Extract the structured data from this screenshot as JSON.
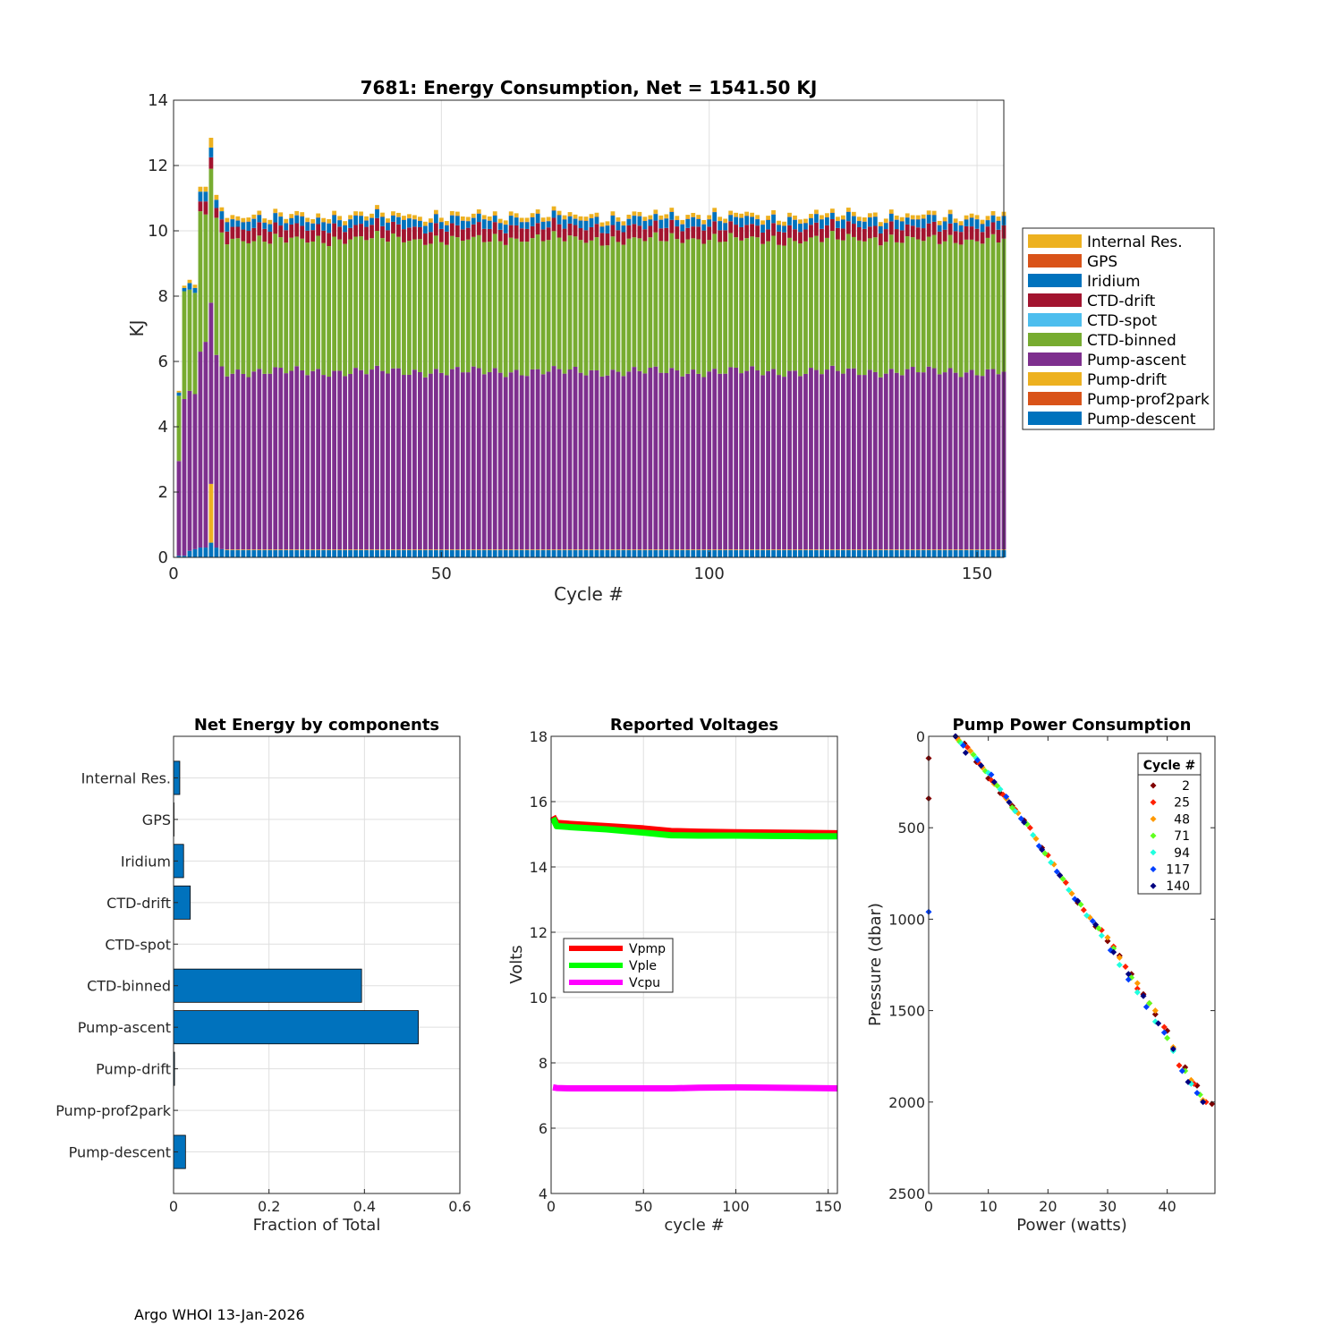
{
  "footer": "Argo WHOI 13-Jan-2026",
  "colors": {
    "internal_res": "#edb120",
    "gps": "#d95319",
    "iridium": "#0072bd",
    "ctd_drift": "#a2142f",
    "ctd_spot": "#4dbeee",
    "ctd_binned": "#77ac30",
    "pump_ascent": "#7e2f8e",
    "pump_drift": "#edb120",
    "pump_prof2park": "#d95319",
    "pump_descent": "#0072bd",
    "hbar": "#0072bd",
    "vpmp": "#ff0000",
    "vple": "#00ff00",
    "vcpu": "#ff00ff"
  },
  "chart_data": [
    {
      "type": "bar",
      "stacked": true,
      "title": "7681: Energy Consumption,  Net = 1541.50 KJ",
      "xlabel": "Cycle #",
      "ylabel": "KJ",
      "xlim": [
        0,
        155
      ],
      "ylim": [
        0,
        14
      ],
      "xticks": [
        0,
        50,
        100,
        150
      ],
      "yticks": [
        0,
        2,
        4,
        6,
        8,
        10,
        12,
        14
      ],
      "grid": true,
      "legend_position": "right",
      "legend": [
        "Internal Res.",
        "GPS",
        "Iridium",
        "CTD-drift",
        "CTD-spot",
        "CTD-binned",
        "Pump-ascent",
        "Pump-drift",
        "Pump-prof2park",
        "Pump-descent"
      ],
      "early_cycles": [
        {
          "cycle": 1,
          "descent": 0.05,
          "prof2park": 0,
          "drift": 0,
          "ascent": 2.9,
          "binned": 2.0,
          "spot": 0,
          "ctd_drift": 0,
          "iridium": 0.1,
          "gps": 0,
          "internal": 0.05
        },
        {
          "cycle": 2,
          "descent": 0.05,
          "prof2park": 0,
          "drift": 0,
          "ascent": 4.8,
          "binned": 3.3,
          "spot": 0,
          "ctd_drift": 0,
          "iridium": 0.1,
          "gps": 0,
          "internal": 0.07
        },
        {
          "cycle": 3,
          "descent": 0.2,
          "prof2park": 0,
          "drift": 0,
          "ascent": 4.9,
          "binned": 3.1,
          "spot": 0,
          "ctd_drift": 0,
          "iridium": 0.2,
          "gps": 0,
          "internal": 0.1
        },
        {
          "cycle": 4,
          "descent": 0.25,
          "prof2park": 0,
          "drift": 0,
          "ascent": 4.75,
          "binned": 3.1,
          "spot": 0,
          "ctd_drift": 0,
          "iridium": 0.15,
          "gps": 0,
          "internal": 0.1
        },
        {
          "cycle": 5,
          "descent": 0.3,
          "prof2park": 0,
          "drift": 0,
          "ascent": 6.0,
          "binned": 4.3,
          "spot": 0,
          "ctd_drift": 0.3,
          "iridium": 0.3,
          "gps": 0,
          "internal": 0.15
        },
        {
          "cycle": 6,
          "descent": 0.3,
          "prof2park": 0,
          "drift": 0,
          "ascent": 6.3,
          "binned": 3.9,
          "spot": 0,
          "ctd_drift": 0.4,
          "iridium": 0.3,
          "gps": 0,
          "internal": 0.15
        },
        {
          "cycle": 7,
          "descent": 0.45,
          "prof2park": 0,
          "drift": 1.8,
          "ascent": 5.55,
          "binned": 4.1,
          "spot": 0,
          "ctd_drift": 0.35,
          "iridium": 0.3,
          "gps": 0,
          "internal": 0.3
        },
        {
          "cycle": 8,
          "descent": 0.3,
          "prof2park": 0,
          "drift": 0,
          "ascent": 5.9,
          "binned": 4.2,
          "spot": 0,
          "ctd_drift": 0.3,
          "iridium": 0.25,
          "gps": 0,
          "internal": 0.15
        },
        {
          "cycle": 9,
          "descent": 0.25,
          "prof2park": 0,
          "drift": 0,
          "ascent": 5.6,
          "binned": 4.1,
          "spot": 0,
          "ctd_drift": 0.4,
          "iridium": 0.25,
          "gps": 0,
          "internal": 0.12
        }
      ],
      "typical_cycle_10_to_155": {
        "descent": 0.22,
        "prof2park": 0,
        "drift": 0.02,
        "ascent": 5.45,
        "binned": 4.05,
        "spot": 0,
        "ctd_drift": 0.38,
        "iridium": 0.24,
        "gps": 0.01,
        "internal": 0.12
      }
    },
    {
      "type": "bar",
      "orientation": "horizontal",
      "title": "Net Energy by components",
      "xlabel": "Fraction of Total",
      "xlim": [
        0,
        0.6
      ],
      "xticks": [
        0,
        0.2,
        0.4,
        0.6
      ],
      "grid": true,
      "categories": [
        "Internal Res.",
        "GPS",
        "Iridium",
        "CTD-drift",
        "CTD-spot",
        "CTD-binned",
        "Pump-ascent",
        "Pump-drift",
        "Pump-prof2park",
        "Pump-descent"
      ],
      "values": [
        0.013,
        0.001,
        0.021,
        0.035,
        0,
        0.394,
        0.513,
        0.002,
        0,
        0.025
      ]
    },
    {
      "type": "line",
      "title": "Reported Voltages",
      "xlabel": "cycle #",
      "ylabel": "Volts",
      "xlim": [
        0,
        155
      ],
      "ylim": [
        4,
        18
      ],
      "xticks": [
        0,
        50,
        100,
        150
      ],
      "yticks": [
        4,
        6,
        8,
        10,
        12,
        14,
        16,
        18
      ],
      "grid": true,
      "legend_position": "center-left",
      "series": [
        {
          "name": "Vpmp",
          "x": [
            1,
            3,
            10,
            30,
            50,
            65,
            80,
            100,
            120,
            140,
            155
          ],
          "values": [
            15.55,
            15.35,
            15.32,
            15.25,
            15.18,
            15.1,
            15.08,
            15.06,
            15.05,
            15.04,
            15.03
          ]
        },
        {
          "name": "Vple",
          "x": [
            1,
            3,
            10,
            30,
            50,
            65,
            80,
            100,
            120,
            140,
            155
          ],
          "values": [
            15.5,
            15.25,
            15.22,
            15.15,
            15.05,
            14.97,
            14.96,
            14.96,
            14.95,
            14.94,
            14.94
          ]
        },
        {
          "name": "Vcpu",
          "x": [
            1,
            3,
            10,
            30,
            50,
            65,
            80,
            100,
            120,
            140,
            155
          ],
          "values": [
            7.25,
            7.23,
            7.22,
            7.22,
            7.22,
            7.22,
            7.24,
            7.25,
            7.24,
            7.23,
            7.22
          ]
        }
      ]
    },
    {
      "type": "scatter",
      "title": "Pump Power Consumption",
      "xlabel": "Power (watts)",
      "ylabel": "Pressure (dbar)",
      "xlim": [
        0,
        48
      ],
      "ylim": [
        2500,
        0
      ],
      "xticks": [
        0,
        10,
        20,
        30,
        40
      ],
      "yticks": [
        0,
        500,
        1000,
        1500,
        2000,
        2500
      ],
      "grid": false,
      "legend_title": "Cycle #",
      "legend_position": "top-right",
      "series": [
        {
          "name": "2",
          "color": "#800000",
          "x": [
            0,
            0,
            4.5,
            6,
            8,
            10,
            12,
            14,
            16,
            19,
            22,
            25,
            28,
            30,
            32,
            34,
            36,
            38,
            40,
            43,
            45,
            47.5
          ],
          "values": [
            120,
            340,
            0,
            40,
            140,
            230,
            310,
            380,
            460,
            610,
            760,
            910,
            1040,
            1120,
            1200,
            1300,
            1410,
            1520,
            1610,
            1810,
            1910,
            2010
          ]
        },
        {
          "name": "25",
          "color": "#ff2000",
          "x": [
            4.8,
            6.5,
            8.5,
            10.5,
            12.5,
            14.5,
            17,
            20,
            23,
            26,
            29,
            31,
            33,
            35,
            37,
            39.5,
            42,
            44.5,
            46.5
          ],
          "values": [
            10,
            60,
            150,
            240,
            320,
            400,
            500,
            650,
            800,
            950,
            1060,
            1150,
            1260,
            1380,
            1460,
            1590,
            1800,
            1900,
            2000
          ]
        },
        {
          "name": "48",
          "color": "#ff9900",
          "x": [
            5,
            7,
            9,
            11,
            13,
            15,
            18,
            21,
            24,
            27,
            30,
            32,
            35,
            38,
            41,
            44,
            46
          ],
          "values": [
            20,
            80,
            170,
            260,
            340,
            420,
            560,
            700,
            860,
            990,
            1100,
            1210,
            1350,
            1500,
            1700,
            1880,
            1990
          ]
        },
        {
          "name": "71",
          "color": "#60ff20",
          "x": [
            5.2,
            7.5,
            9.5,
            11.5,
            14,
            16.5,
            19.5,
            22.5,
            25.5,
            28.5,
            31,
            34,
            37,
            40,
            43,
            45.5
          ],
          "values": [
            30,
            100,
            190,
            270,
            390,
            480,
            640,
            780,
            920,
            1050,
            1160,
            1320,
            1460,
            1650,
            1830,
            1960
          ]
        },
        {
          "name": "94",
          "color": "#20ffdf",
          "x": [
            5.5,
            8,
            10,
            12,
            14.5,
            17.5,
            20.5,
            23.5,
            26.5,
            29,
            32,
            35,
            38,
            41,
            44
          ],
          "values": [
            40,
            120,
            200,
            290,
            410,
            540,
            690,
            840,
            980,
            1090,
            1250,
            1400,
            1560,
            1720,
            1900
          ]
        },
        {
          "name": "117",
          "color": "#0040ff",
          "x": [
            0,
            5.8,
            8.2,
            10.5,
            13,
            15.5,
            18.5,
            21.5,
            24.5,
            27.5,
            30.5,
            33.5,
            36.5,
            39.5,
            42.5,
            45
          ],
          "values": [
            960,
            50,
            130,
            210,
            330,
            450,
            600,
            740,
            890,
            1010,
            1170,
            1330,
            1480,
            1620,
            1830,
            1950
          ]
        },
        {
          "name": "140",
          "color": "#000080",
          "x": [
            4.5,
            6.2,
            8.8,
            11,
            13.5,
            16,
            19,
            22,
            25,
            28,
            31,
            33.5,
            36,
            38.5,
            41,
            43.5,
            46
          ],
          "values": [
            0,
            90,
            160,
            250,
            360,
            470,
            620,
            760,
            900,
            1030,
            1180,
            1300,
            1420,
            1570,
            1710,
            1890,
            2000
          ]
        }
      ]
    }
  ]
}
